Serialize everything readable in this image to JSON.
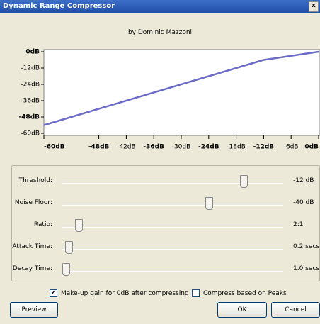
{
  "window": {
    "title": "Dynamic Range Compressor",
    "close": "x"
  },
  "subtitle": "by Dominic Mazzoni",
  "chart_data": {
    "type": "line",
    "x": [
      -60,
      -12,
      0
    ],
    "series": [
      {
        "color": "#6b6bc8",
        "values": [
          -54,
          -6,
          0
        ]
      }
    ],
    "xlim": [
      -60,
      0
    ],
    "ylim": [
      -60,
      0
    ],
    "xticks": [
      {
        "value": -60,
        "label": "-60dB",
        "bold": true
      },
      {
        "value": -48,
        "label": "-48dB",
        "bold": true
      },
      {
        "value": -42,
        "label": "-42dB",
        "bold": false
      },
      {
        "value": -36,
        "label": "-36dB",
        "bold": true
      },
      {
        "value": -30,
        "label": "-30dB",
        "bold": false
      },
      {
        "value": -24,
        "label": "-24dB",
        "bold": true
      },
      {
        "value": -18,
        "label": "-18dB",
        "bold": false
      },
      {
        "value": -12,
        "label": "-12dB",
        "bold": true
      },
      {
        "value": -6,
        "label": "-6dB",
        "bold": false
      },
      {
        "value": 0,
        "label": "0dB",
        "bold": true
      }
    ],
    "yticks": [
      {
        "value": 0,
        "label": "0dB",
        "bold": true
      },
      {
        "value": -12,
        "label": "-12dB",
        "bold": false
      },
      {
        "value": -24,
        "label": "-24dB",
        "bold": false
      },
      {
        "value": -36,
        "label": "-36dB",
        "bold": false
      },
      {
        "value": -48,
        "label": "-48dB",
        "bold": true
      },
      {
        "value": -60,
        "label": "-60dB",
        "bold": false
      }
    ]
  },
  "sliders": [
    {
      "label": "Threshold:",
      "value": "-12 dB"
    },
    {
      "label": "Noise Floor:",
      "value": "-40 dB"
    },
    {
      "label": "Ratio:",
      "value": "2:1"
    },
    {
      "label": "Attack Time:",
      "value": "0.2 secs"
    },
    {
      "label": "Decay Time:",
      "value": "1.0 secs"
    }
  ],
  "checkboxes": [
    {
      "label": "Make-up gain for 0dB after compressing",
      "checked": true
    },
    {
      "label": "Compress based on Peaks",
      "checked": false
    }
  ],
  "buttons": [
    {
      "label": "Preview"
    },
    {
      "label": "OK"
    },
    {
      "label": "Cancel"
    }
  ]
}
